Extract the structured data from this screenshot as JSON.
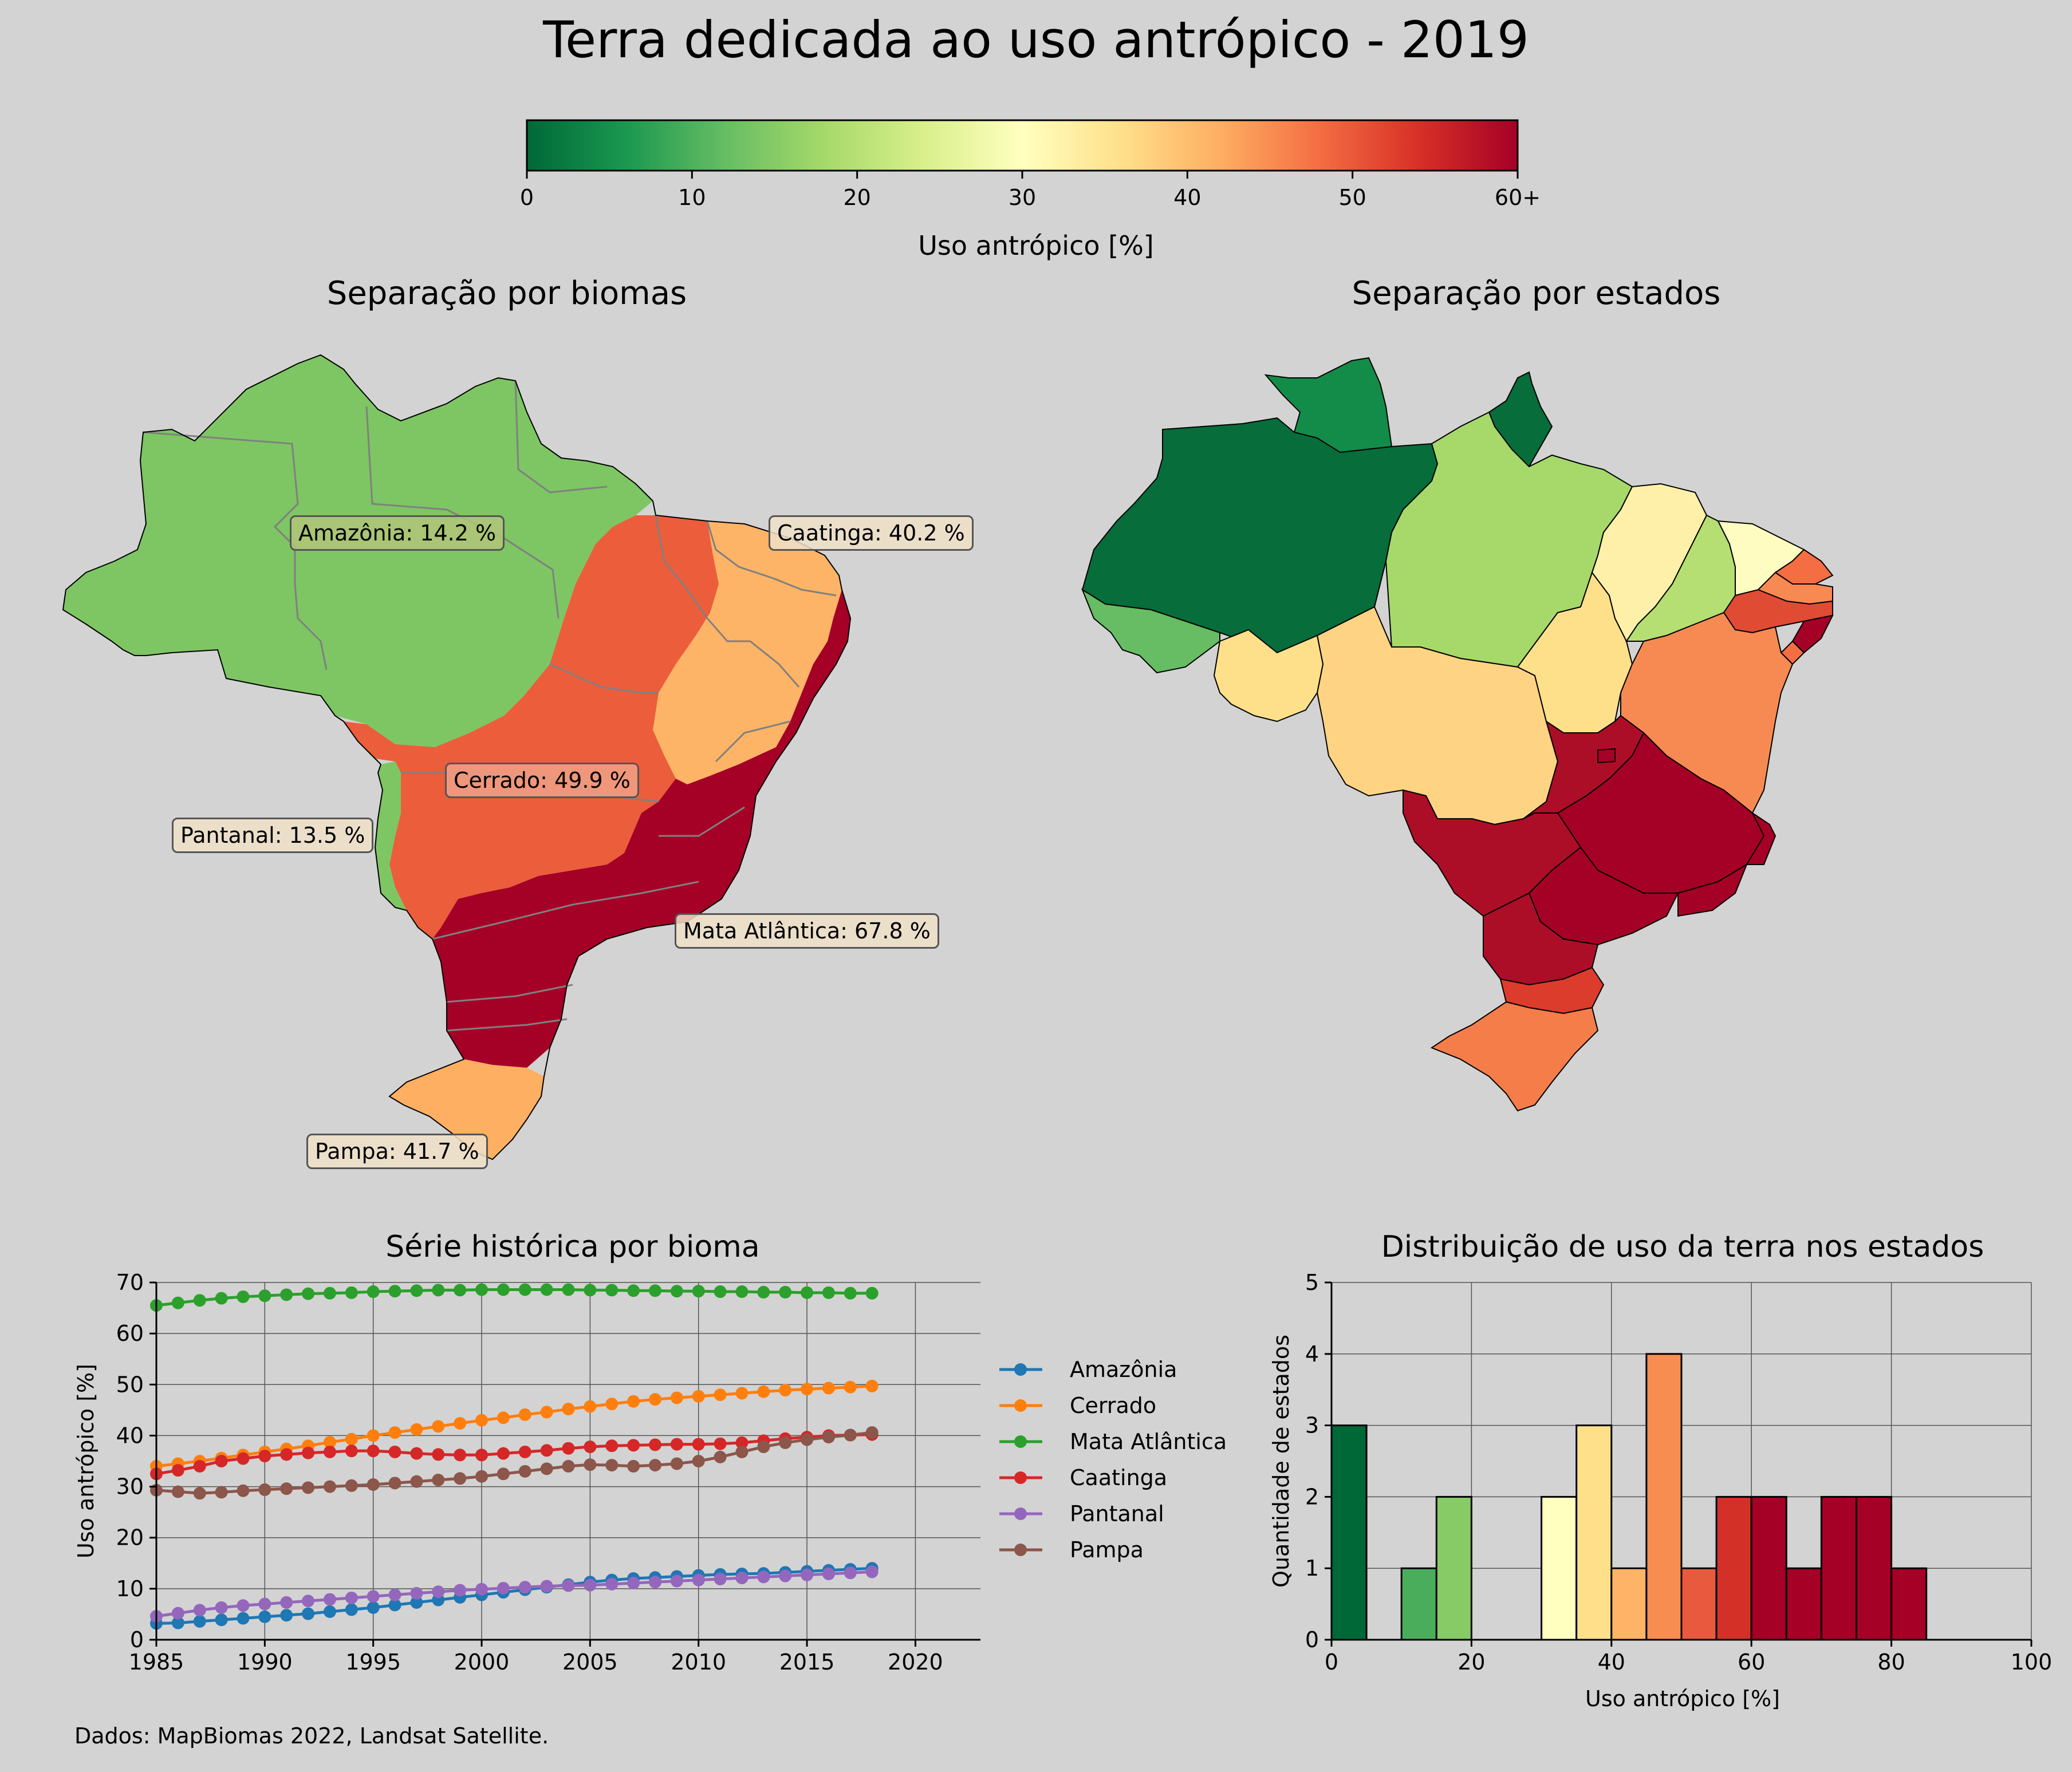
{
  "title": "Terra dedicada ao uso antrópico - 2019",
  "footnote": "Dados: MapBiomas 2022, Landsat Satellite.",
  "colorbar": {
    "label": "Uso antrópico [%]",
    "ticks": [
      "0",
      "10",
      "20",
      "30",
      "40",
      "50",
      "60+"
    ],
    "colors": [
      "#006837",
      "#1a9850",
      "#66bd63",
      "#a6d96a",
      "#d9ef8b",
      "#ffffbf",
      "#fee08b",
      "#fdae61",
      "#f46d43",
      "#d73027",
      "#a50026"
    ]
  },
  "biome_map": {
    "title": "Separação por biomas",
    "labels": {
      "amazonia": "Amazônia: 14.2 %",
      "caatinga": "Caatinga: 40.2 %",
      "cerrado": "Cerrado: 49.9 %",
      "pantanal": "Pantanal: 13.5 %",
      "mata_atlantica": "Mata Atlântica: 67.8 %",
      "pampa": "Pampa: 41.7 %"
    },
    "colors": {
      "amazonia": "#7dc663",
      "caatinga": "#feb466",
      "cerrado": "#ec5d3b",
      "pantanal": "#7dc663",
      "mata_atlantica": "#a50026",
      "pampa": "#feaf61"
    }
  },
  "state_map": {
    "title": "Separação por estados"
  },
  "chart_data": [
    {
      "type": "line",
      "title": "Série histórica por bioma",
      "xlabel": "",
      "ylabel": "Uso antrópico [%]",
      "xlim": [
        1985,
        2023
      ],
      "ylim": [
        0,
        70
      ],
      "xticks": [
        1985,
        1990,
        1995,
        2000,
        2005,
        2010,
        2015,
        2020
      ],
      "yticks": [
        0,
        10,
        20,
        30,
        40,
        50,
        60,
        70
      ],
      "grid": true,
      "legend": "right",
      "x": [
        1985,
        1986,
        1987,
        1988,
        1989,
        1990,
        1991,
        1992,
        1993,
        1994,
        1995,
        1996,
        1997,
        1998,
        1999,
        2000,
        2001,
        2002,
        2003,
        2004,
        2005,
        2006,
        2007,
        2008,
        2009,
        2010,
        2011,
        2012,
        2013,
        2014,
        2015,
        2016,
        2017,
        2018
      ],
      "series": [
        {
          "name": "Amazônia",
          "color": "#1f77b4",
          "values": [
            3.2,
            3.3,
            3.6,
            3.9,
            4.2,
            4.5,
            4.8,
            5.1,
            5.5,
            5.9,
            6.3,
            6.8,
            7.3,
            7.8,
            8.3,
            8.8,
            9.3,
            9.8,
            10.3,
            10.8,
            11.3,
            11.7,
            12.0,
            12.2,
            12.4,
            12.6,
            12.8,
            12.9,
            13.0,
            13.2,
            13.4,
            13.6,
            13.8,
            14.0
          ]
        },
        {
          "name": "Cerrado",
          "color": "#ff7f0e",
          "values": [
            34.0,
            34.5,
            35.0,
            35.6,
            36.2,
            36.8,
            37.4,
            38.0,
            38.7,
            39.3,
            40.0,
            40.6,
            41.2,
            41.8,
            42.4,
            43.0,
            43.5,
            44.1,
            44.6,
            45.2,
            45.7,
            46.2,
            46.7,
            47.1,
            47.4,
            47.7,
            48.0,
            48.3,
            48.6,
            48.9,
            49.1,
            49.3,
            49.5,
            49.7
          ]
        },
        {
          "name": "Mata Atlântica",
          "color": "#2ca02c",
          "values": [
            65.5,
            66.0,
            66.5,
            66.9,
            67.2,
            67.4,
            67.6,
            67.8,
            67.9,
            68.0,
            68.2,
            68.3,
            68.4,
            68.5,
            68.5,
            68.6,
            68.6,
            68.6,
            68.6,
            68.6,
            68.5,
            68.5,
            68.4,
            68.4,
            68.3,
            68.3,
            68.2,
            68.2,
            68.1,
            68.1,
            68.0,
            68.0,
            67.9,
            67.9
          ]
        },
        {
          "name": "Caatinga",
          "color": "#d62728",
          "values": [
            32.5,
            33.2,
            34.0,
            35.0,
            35.5,
            36.0,
            36.3,
            36.6,
            36.8,
            37.0,
            37.0,
            36.8,
            36.5,
            36.3,
            36.2,
            36.2,
            36.5,
            36.8,
            37.1,
            37.5,
            37.8,
            38.0,
            38.1,
            38.2,
            38.3,
            38.3,
            38.4,
            38.6,
            39.0,
            39.4,
            39.7,
            40.0,
            40.1,
            40.2
          ]
        },
        {
          "name": "Pantanal",
          "color": "#9467bd",
          "values": [
            4.6,
            5.2,
            5.8,
            6.3,
            6.7,
            7.0,
            7.3,
            7.6,
            7.9,
            8.2,
            8.5,
            8.8,
            9.1,
            9.4,
            9.7,
            9.9,
            10.1,
            10.3,
            10.5,
            10.6,
            10.7,
            10.9,
            11.1,
            11.3,
            11.5,
            11.7,
            11.9,
            12.1,
            12.3,
            12.5,
            12.7,
            12.9,
            13.1,
            13.3
          ]
        },
        {
          "name": "Pampa",
          "color": "#8c564b",
          "values": [
            29.3,
            29.0,
            28.7,
            28.9,
            29.2,
            29.4,
            29.6,
            29.8,
            30.0,
            30.2,
            30.4,
            30.7,
            31.0,
            31.3,
            31.6,
            32.0,
            32.5,
            33.0,
            33.5,
            34.0,
            34.3,
            34.2,
            34.0,
            34.2,
            34.5,
            35.0,
            35.8,
            36.8,
            37.8,
            38.6,
            39.2,
            39.7,
            40.1,
            40.6
          ]
        }
      ]
    },
    {
      "type": "bar",
      "title": "Distribuição de uso da terra nos estados",
      "xlabel": "Uso antrópico [%]",
      "ylabel": "Quantidade de estados",
      "xlim": [
        0,
        100
      ],
      "ylim": [
        0,
        5
      ],
      "xticks": [
        0,
        20,
        40,
        60,
        80,
        100
      ],
      "yticks": [
        0,
        1,
        2,
        3,
        4,
        5
      ],
      "grid": true,
      "bin_width": 5,
      "bin_starts": [
        0,
        5,
        10,
        15,
        20,
        25,
        30,
        35,
        40,
        45,
        50,
        55,
        60,
        65,
        70,
        75,
        80,
        85,
        90,
        95
      ],
      "values": [
        3,
        0,
        1,
        2,
        0,
        0,
        2,
        3,
        1,
        4,
        1,
        2,
        2,
        1,
        2,
        2,
        1,
        0,
        0,
        0
      ],
      "colors": [
        "#006837",
        "#1a9850",
        "#4aad5b",
        "#86cb66",
        "#d9ef8b",
        "#ffffbf",
        "#ffffbf",
        "#fee08b",
        "#fdb466",
        "#f88d52",
        "#e85a3e",
        "#d33128",
        "#a50026",
        "#a50026",
        "#a50026",
        "#a50026",
        "#a50026",
        "#a50026",
        "#a50026",
        "#a50026"
      ]
    }
  ]
}
